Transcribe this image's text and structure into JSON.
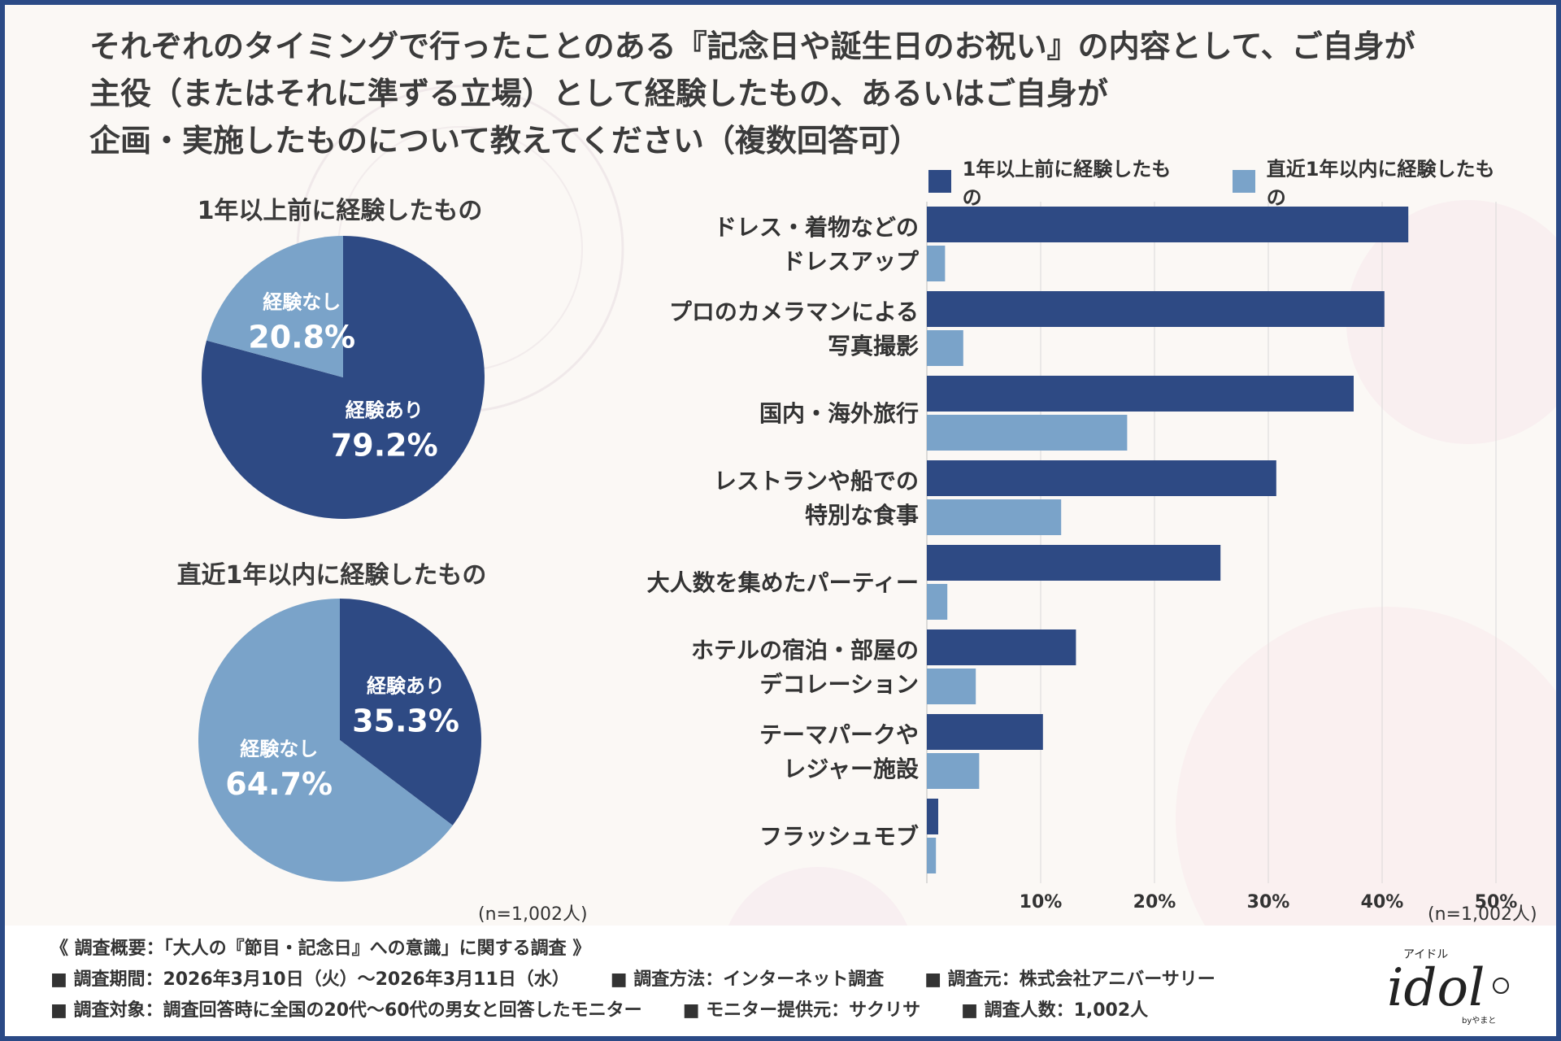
{
  "title_lines": [
    "それぞれのタイミングで行ったことのある『記念日や誕生日のお祝い』の内容として、ご自身が",
    "主役（またはそれに準ずる立場）として経験したもの、あるいはご自身が",
    "企画・実施したものについて教えてください（複数回答可）"
  ],
  "colors": {
    "dark": "#2e4a84",
    "light": "#7aa3c9",
    "frame": "#2b4a86"
  },
  "pies": [
    {
      "title": "1年以上前に経験したもの",
      "slices": [
        {
          "label": "経験あり",
          "value": 79.2,
          "pct": "79.2%",
          "color": "#2e4a84"
        },
        {
          "label": "経験なし",
          "value": 20.8,
          "pct": "20.8%",
          "color": "#7aa3c9"
        }
      ]
    },
    {
      "title": "直近1年以内に経験したもの",
      "slices": [
        {
          "label": "経験あり",
          "value": 35.3,
          "pct": "35.3%",
          "color": "#2e4a84"
        },
        {
          "label": "経験なし",
          "value": 64.7,
          "pct": "64.7%",
          "color": "#7aa3c9"
        }
      ]
    }
  ],
  "left_n": "(n=1,002人)",
  "right_n": "(n=1,002人)",
  "chart_data": {
    "type": "bar",
    "orientation": "horizontal",
    "categories": [
      [
        "ドレス・着物などの",
        "ドレスアップ"
      ],
      [
        "プロのカメラマンによる",
        "写真撮影"
      ],
      [
        "国内・海外旅行"
      ],
      [
        "レストランや船での",
        "特別な食事"
      ],
      [
        "大人数を集めたパーティー"
      ],
      [
        "ホテルの宿泊・部屋の",
        "デコレーション"
      ],
      [
        "テーマパークや",
        "レジャー施設"
      ],
      [
        "フラッシュモブ"
      ]
    ],
    "series": [
      {
        "name": "1年以上前に経験したもの",
        "color": "#2e4a84",
        "values": [
          42.3,
          40.2,
          37.5,
          30.7,
          25.8,
          13.1,
          10.2,
          1.0
        ]
      },
      {
        "name": "直近1年以内に経験したもの",
        "color": "#7aa3c9",
        "values": [
          1.6,
          3.2,
          17.6,
          11.8,
          1.8,
          4.3,
          4.6,
          0.8
        ]
      }
    ],
    "xlim": [
      0,
      50
    ],
    "xticks": [
      "10%",
      "20%",
      "30%",
      "40%",
      "50%"
    ],
    "grid": true,
    "legend": "top"
  },
  "footer": {
    "heading": "《 調査概要：「大人の『節目・記念日』への意識」に関する調査 》",
    "row1": [
      "■ 調査期間：2026年3月10日（火）～2026年3月11日（水）",
      "■ 調査方法：インターネット調査",
      "■ 調査元：株式会社アニバーサリー"
    ],
    "row2": [
      "■ 調査対象：調査回答時に全国の20代～60代の男女と回答したモニター",
      "■ モニター提供元：サクリサ",
      "■ 調査人数：1,002人"
    ]
  },
  "logo": {
    "kana": "アイドル",
    "word": "idol",
    "by": "byやまと"
  }
}
